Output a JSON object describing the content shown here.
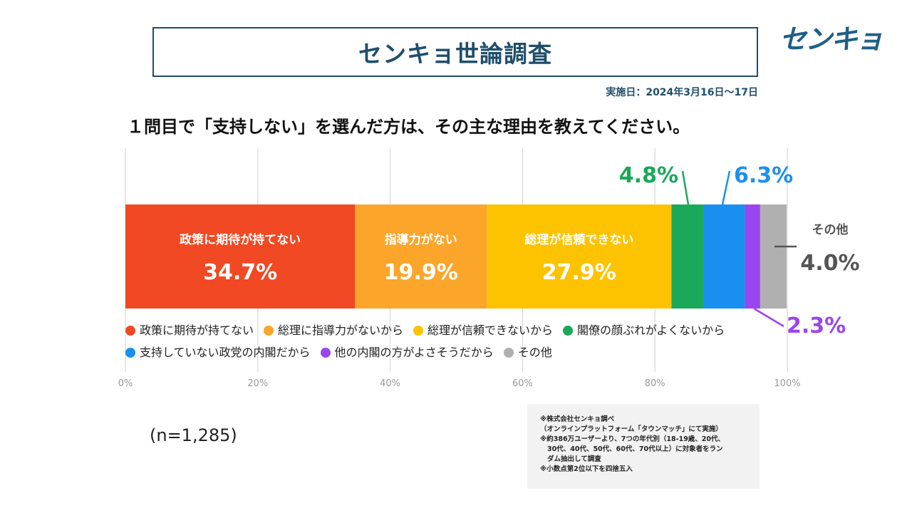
{
  "title": "センキョ世論調査",
  "logo": "センキョ",
  "date": "実施日：2024年3月16日〜17日",
  "question": "１問目で「支持しない」を選んだ方は、その主な理由を教えてください。",
  "sample": "(n=1,285)",
  "notes": [
    "※株式会社センキョ調べ",
    "（オンラインプラットフォーム「タウンマッチ」にて実施）",
    "※約386万ユーザーより、7つの年代別（18-19歳、20代、",
    "30代、40代、50代、60代、70代以上）に対象者をラン",
    "ダム抽出して調査",
    "※小数点第2位以下を四捨五入"
  ],
  "legend_rows": [
    [
      {
        "label": "政策に期待が持てない",
        "color": "#f04923"
      },
      {
        "label": "総理に指導力がないから",
        "color": "#fba52a"
      },
      {
        "label": "総理が信頼できないから",
        "color": "#fdc300"
      },
      {
        "label": "閣僚の顔ぶれがよくないから",
        "color": "#1aa85a"
      }
    ],
    [
      {
        "label": "支持していない政党の内閣だから",
        "color": "#1b8ff0"
      },
      {
        "label": "他の内閣の方がよさそうだから",
        "color": "#9b45f0"
      },
      {
        "label": "その他",
        "color": "#b0b0b0"
      }
    ]
  ],
  "chart_data": {
    "type": "bar",
    "orientation": "horizontal-stacked-100",
    "xlim": [
      0,
      100
    ],
    "xticks": [
      "0%",
      "20%",
      "40%",
      "60%",
      "80%",
      "100%"
    ],
    "series": [
      {
        "name": "政策に期待が持てない",
        "short": "政策に期待が持てない",
        "value": 34.7,
        "label": "34.7%",
        "color": "#f04923"
      },
      {
        "name": "総理に指導力がないから",
        "short": "指導力がない",
        "value": 19.9,
        "label": "19.9%",
        "color": "#fba52a"
      },
      {
        "name": "総理が信頼できないから",
        "short": "総理が信頼できない",
        "value": 27.9,
        "label": "27.9%",
        "color": "#fdc300"
      },
      {
        "name": "閣僚の顔ぶれがよくないから",
        "short": "",
        "value": 4.8,
        "label": "4.8%",
        "color": "#1aa85a"
      },
      {
        "name": "支持していない政党の内閣だから",
        "short": "",
        "value": 6.3,
        "label": "6.3%",
        "color": "#1b8ff0"
      },
      {
        "name": "他の内閣の方がよさそうだから",
        "short": "",
        "value": 2.3,
        "label": "2.3%",
        "color": "#9b45f0"
      },
      {
        "name": "その他",
        "short": "その他",
        "value": 4.0,
        "label": "4.0%",
        "color": "#b0b0b0"
      }
    ]
  }
}
